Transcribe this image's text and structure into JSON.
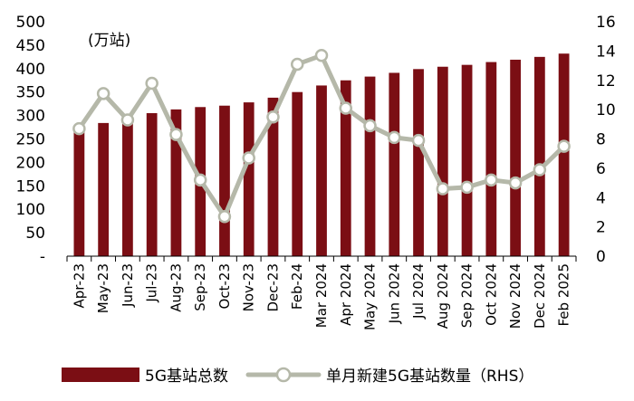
{
  "chart_data": {
    "type": "bar",
    "unit_label": "(万站)",
    "categories": [
      "Apr-23",
      "May-23",
      "Jun-23",
      "Jul-23",
      "Aug-23",
      "Sep-23",
      "Oct-23",
      "Nov-23",
      "Dec-23",
      "Feb-24",
      "Mar 2024",
      "Apr 2024",
      "May 2024",
      "Jun 2024",
      "Jul 2024",
      "Aug 2024",
      "Sep 2024",
      "Oct 2024",
      "Nov 2024",
      "Dec 2024",
      "Feb 2025"
    ],
    "series": [
      {
        "name": "5G基站总数",
        "type": "bar",
        "axis": "left",
        "color": "#7b0e14",
        "values": [
          273,
          284,
          293,
          305,
          313,
          318,
          321,
          328,
          338,
          350,
          364,
          375,
          383,
          391,
          399,
          404,
          408,
          414,
          419,
          425,
          432
        ]
      },
      {
        "name": "单月新建5G基站数量（RHS）",
        "type": "line",
        "axis": "right",
        "color": "#b5b8a9",
        "values": [
          8.7,
          11.1,
          9.3,
          11.8,
          8.3,
          5.2,
          2.7,
          6.7,
          9.5,
          13.1,
          13.7,
          10.1,
          8.9,
          8.1,
          7.9,
          4.6,
          4.7,
          5.2,
          5.0,
          5.9,
          7.5
        ]
      }
    ],
    "left_axis": {
      "min": 0,
      "max": 500,
      "ticks": [
        "-",
        "50",
        "100",
        "150",
        "200",
        "250",
        "300",
        "350",
        "400",
        "450",
        "500"
      ]
    },
    "right_axis": {
      "min": 0,
      "max": 16,
      "ticks": [
        "0",
        "2",
        "4",
        "6",
        "8",
        "10",
        "12",
        "14",
        "16"
      ]
    },
    "legend_position": "bottom",
    "grid": false
  }
}
